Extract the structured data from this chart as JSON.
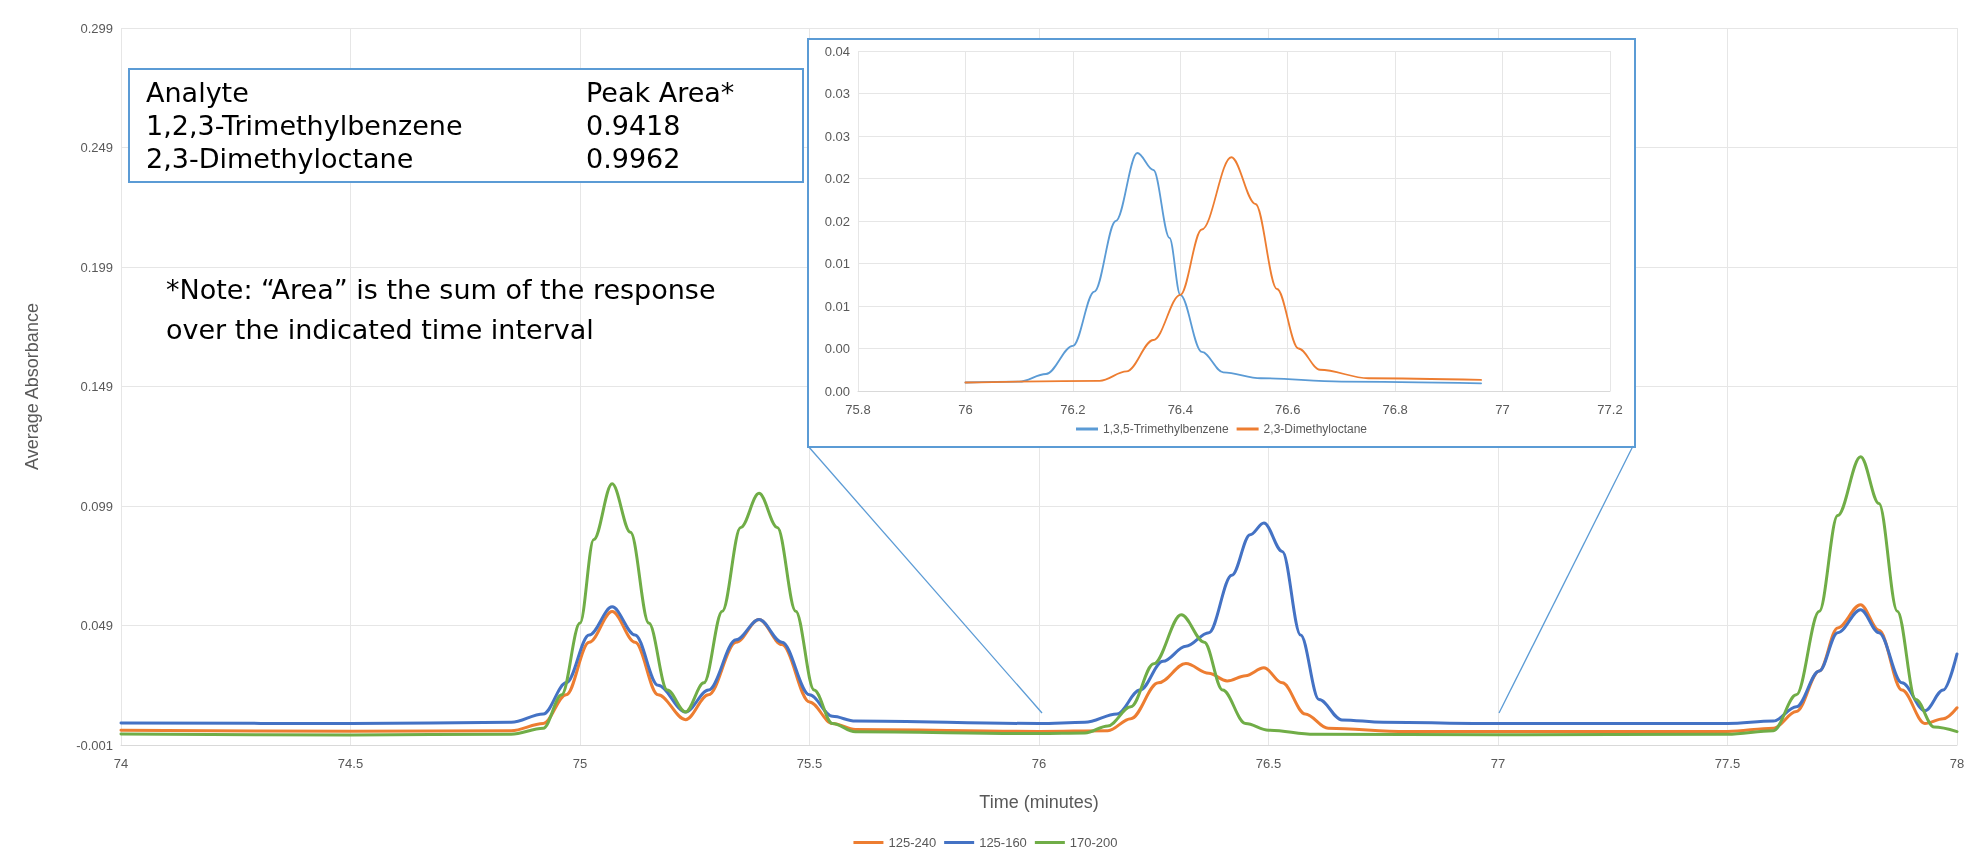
{
  "chart_data": [
    {
      "type": "line",
      "xlabel": "Time (minutes)",
      "ylabel": "Average Absorbance",
      "xlim": [
        74,
        78
      ],
      "xticks": [
        74,
        74.5,
        75,
        75.5,
        76,
        76.5,
        77,
        77.5,
        78
      ],
      "ylim": [
        -0.001,
        0.299
      ],
      "yticks": [
        -0.001,
        0.049,
        0.099,
        0.149,
        0.199,
        0.249,
        0.299
      ],
      "grid": true,
      "legend": "bottom",
      "marker": "none",
      "annotations": [
        "Analyte",
        "Peak Area*",
        "1,2,3-Trimethylbenzene",
        "0.9418",
        "2,3-Dimethyloctane",
        "0.9962",
        "*Note: “Area” is the sum of the response over the indicated time interval"
      ],
      "series": [
        {
          "name": "125-240",
          "color": "#ed7d31",
          "x": [
            74,
            74.5,
            74.85,
            74.92,
            74.97,
            75.02,
            75.07,
            75.12,
            75.17,
            75.23,
            75.28,
            75.34,
            75.39,
            75.44,
            75.5,
            75.55,
            75.6,
            76,
            76.15,
            76.2,
            76.26,
            76.32,
            76.37,
            76.41,
            76.45,
            76.49,
            76.53,
            76.58,
            76.63,
            76.8,
            77,
            77.5,
            77.6,
            77.65,
            77.7,
            77.74,
            77.79,
            77.83,
            77.88,
            77.93,
            77.97,
            78
          ],
          "values": [
            0.0052,
            0.0048,
            0.005,
            0.008,
            0.02,
            0.042,
            0.0549,
            0.042,
            0.02,
            0.0096,
            0.02,
            0.042,
            0.0515,
            0.041,
            0.017,
            0.008,
            0.0055,
            0.0047,
            0.005,
            0.01,
            0.025,
            0.0331,
            0.029,
            0.0258,
            0.028,
            0.0313,
            0.025,
            0.012,
            0.006,
            0.0046,
            0.0046,
            0.0047,
            0.006,
            0.013,
            0.03,
            0.048,
            0.0577,
            0.047,
            0.022,
            0.008,
            0.01,
            0.0146
          ]
        },
        {
          "name": "125-160",
          "color": "#4472c4",
          "x": [
            74,
            74.5,
            74.85,
            74.92,
            74.97,
            75.02,
            75.07,
            75.12,
            75.17,
            75.23,
            75.28,
            75.34,
            75.39,
            75.44,
            75.5,
            75.55,
            75.6,
            76,
            76.1,
            76.17,
            76.22,
            76.27,
            76.32,
            76.37,
            76.42,
            76.46,
            76.49,
            76.53,
            76.57,
            76.61,
            76.66,
            76.75,
            77,
            77.5,
            77.6,
            77.65,
            77.7,
            77.74,
            77.79,
            77.83,
            77.88,
            77.93,
            77.97,
            78
          ],
          "values": [
            0.0082,
            0.008,
            0.0085,
            0.012,
            0.025,
            0.045,
            0.0568,
            0.045,
            0.024,
            0.0128,
            0.022,
            0.043,
            0.0515,
            0.042,
            0.02,
            0.011,
            0.009,
            0.008,
            0.0085,
            0.012,
            0.022,
            0.034,
            0.0403,
            0.046,
            0.07,
            0.087,
            0.0919,
            0.08,
            0.045,
            0.018,
            0.0095,
            0.0085,
            0.008,
            0.008,
            0.009,
            0.015,
            0.03,
            0.046,
            0.0556,
            0.046,
            0.025,
            0.0133,
            0.022,
            0.0371
          ]
        },
        {
          "name": "170-200",
          "color": "#70ad47",
          "x": [
            74,
            74.5,
            74.85,
            74.92,
            74.96,
            75,
            75.03,
            75.07,
            75.11,
            75.15,
            75.19,
            75.23,
            75.27,
            75.31,
            75.35,
            75.39,
            75.43,
            75.47,
            75.51,
            75.55,
            75.6,
            76,
            76.1,
            76.15,
            76.2,
            76.25,
            76.31,
            76.36,
            76.4,
            76.45,
            76.5,
            76.6,
            77,
            77.5,
            77.6,
            77.65,
            77.7,
            77.74,
            77.79,
            77.83,
            77.87,
            77.91,
            77.95,
            78
          ],
          "values": [
            0.0036,
            0.0032,
            0.0035,
            0.006,
            0.02,
            0.05,
            0.085,
            0.1083,
            0.088,
            0.05,
            0.022,
            0.0128,
            0.025,
            0.055,
            0.09,
            0.1043,
            0.09,
            0.055,
            0.022,
            0.008,
            0.0045,
            0.0038,
            0.004,
            0.007,
            0.015,
            0.033,
            0.0535,
            0.042,
            0.022,
            0.008,
            0.0052,
            0.0035,
            0.0033,
            0.0035,
            0.005,
            0.02,
            0.055,
            0.095,
            0.1196,
            0.1,
            0.055,
            0.018,
            0.0065,
            0.0046
          ]
        }
      ]
    },
    {
      "type": "line",
      "xlim": [
        75.8,
        77.2
      ],
      "xticks": [
        75.8,
        76,
        76.2,
        76.4,
        76.6,
        76.8,
        77,
        77.2
      ],
      "ylim": [
        0,
        0.04
      ],
      "yticks": [
        {
          "value": 0,
          "label": "0.00"
        },
        {
          "value": 0.005,
          "label": "0.00"
        },
        {
          "value": 0.01,
          "label": "0.01"
        },
        {
          "value": 0.015,
          "label": "0.01"
        },
        {
          "value": 0.02,
          "label": "0.02"
        },
        {
          "value": 0.025,
          "label": "0.02"
        },
        {
          "value": 0.03,
          "label": "0.03"
        },
        {
          "value": 0.035,
          "label": "0.03"
        },
        {
          "value": 0.04,
          "label": "0.04"
        }
      ],
      "grid": true,
      "legend": "bottom",
      "marker": "none",
      "series": [
        {
          "name": "1,3,5-Trimethylbenzene",
          "color": "#5b9bd5",
          "x": [
            76,
            76.1,
            76.15,
            76.2,
            76.24,
            76.28,
            76.32,
            76.35,
            76.38,
            76.4,
            76.44,
            76.48,
            76.55,
            76.7,
            76.96
          ],
          "values": [
            0.001,
            0.0011,
            0.002,
            0.0053,
            0.0117,
            0.02,
            0.028,
            0.026,
            0.018,
            0.0113,
            0.0046,
            0.0022,
            0.0015,
            0.0011,
            0.0009
          ]
        },
        {
          "name": "2,3-Dimethyloctane",
          "color": "#ed7d31",
          "x": [
            76,
            76.25,
            76.3,
            76.35,
            76.4,
            76.44,
            76.495,
            76.54,
            76.58,
            76.62,
            76.66,
            76.75,
            76.96
          ],
          "values": [
            0.001,
            0.0012,
            0.0023,
            0.006,
            0.0113,
            0.019,
            0.0275,
            0.022,
            0.012,
            0.005,
            0.0025,
            0.0015,
            0.0013
          ]
        }
      ]
    }
  ]
}
